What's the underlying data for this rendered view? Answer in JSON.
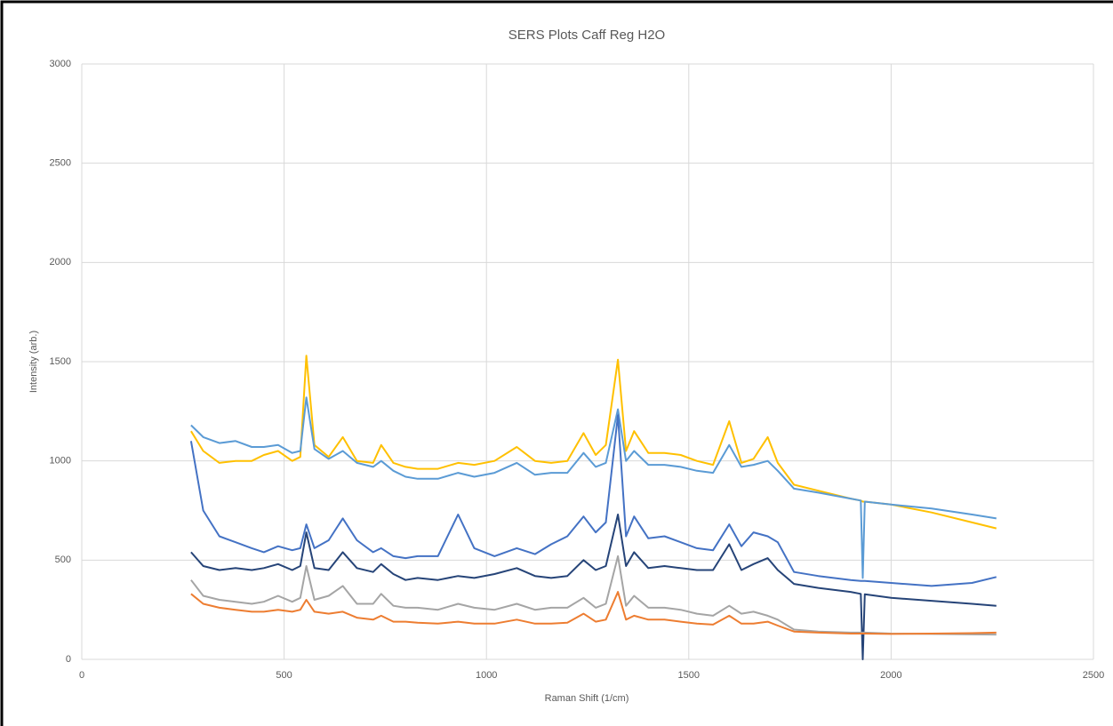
{
  "chart_data": {
    "type": "line",
    "title": "SERS Plots Caff Reg H2O",
    "x_label": "Raman Shift (1/cm)",
    "y_label": "Intensity (arb.)",
    "x": [
      270,
      300,
      340,
      380,
      420,
      450,
      485,
      520,
      540,
      555,
      575,
      610,
      645,
      680,
      720,
      740,
      770,
      800,
      830,
      880,
      930,
      970,
      1020,
      1075,
      1120,
      1160,
      1200,
      1240,
      1270,
      1295,
      1325,
      1345,
      1365,
      1400,
      1440,
      1480,
      1520,
      1560,
      1600,
      1630,
      1660,
      1695,
      1720,
      1760,
      1820,
      1900,
      1925,
      1930,
      1935,
      2000,
      2100,
      2200,
      2260
    ],
    "series": [
      {
        "color": "#ffc000",
        "values": [
          1150,
          1050,
          990,
          1000,
          1000,
          1030,
          1050,
          1000,
          1020,
          1530,
          1080,
          1020,
          1120,
          1000,
          990,
          1080,
          990,
          970,
          960,
          960,
          990,
          980,
          1000,
          1070,
          1000,
          990,
          1000,
          1140,
          1030,
          1080,
          1510,
          1050,
          1150,
          1040,
          1040,
          1030,
          1000,
          980,
          1200,
          990,
          1010,
          1120,
          990,
          880,
          850,
          810,
          800,
          795,
          795,
          780,
          740,
          690,
          660
        ]
      },
      {
        "color": "#5b9bd5",
        "values": [
          1180,
          1120,
          1090,
          1100,
          1070,
          1070,
          1080,
          1040,
          1050,
          1320,
          1060,
          1010,
          1050,
          990,
          970,
          1000,
          950,
          920,
          910,
          910,
          940,
          920,
          940,
          990,
          930,
          940,
          940,
          1040,
          970,
          990,
          1260,
          1000,
          1050,
          980,
          980,
          970,
          950,
          940,
          1080,
          970,
          980,
          1000,
          950,
          860,
          840,
          810,
          800,
          410,
          795,
          780,
          760,
          730,
          710
        ]
      },
      {
        "color": "#4472c4",
        "values": [
          1100,
          750,
          620,
          590,
          560,
          540,
          570,
          550,
          560,
          680,
          560,
          600,
          710,
          600,
          540,
          560,
          520,
          510,
          520,
          520,
          730,
          560,
          520,
          560,
          530,
          580,
          620,
          720,
          640,
          690,
          1230,
          620,
          720,
          610,
          620,
          590,
          560,
          550,
          680,
          570,
          640,
          620,
          590,
          440,
          420,
          400,
          395,
          395,
          395,
          385,
          370,
          385,
          415
        ]
      },
      {
        "color": "#264478",
        "values": [
          540,
          470,
          450,
          460,
          450,
          460,
          480,
          450,
          470,
          640,
          460,
          450,
          540,
          460,
          440,
          480,
          430,
          400,
          410,
          400,
          420,
          410,
          430,
          460,
          420,
          410,
          420,
          500,
          450,
          470,
          730,
          470,
          540,
          460,
          470,
          460,
          450,
          450,
          580,
          450,
          480,
          510,
          450,
          380,
          360,
          340,
          330,
          0,
          328,
          310,
          295,
          280,
          270
        ]
      },
      {
        "color": "#a5a5a5",
        "values": [
          400,
          320,
          300,
          290,
          280,
          290,
          320,
          290,
          310,
          470,
          300,
          320,
          370,
          280,
          280,
          330,
          270,
          260,
          260,
          250,
          280,
          260,
          250,
          280,
          250,
          260,
          260,
          310,
          260,
          280,
          520,
          270,
          320,
          260,
          260,
          250,
          230,
          220,
          270,
          230,
          240,
          220,
          200,
          150,
          140,
          135,
          135,
          135,
          135,
          130,
          128,
          126,
          125
        ]
      },
      {
        "color": "#ed7d31",
        "values": [
          330,
          280,
          260,
          250,
          240,
          240,
          250,
          240,
          250,
          300,
          240,
          230,
          240,
          210,
          200,
          220,
          190,
          190,
          185,
          180,
          190,
          180,
          180,
          200,
          180,
          180,
          185,
          230,
          190,
          200,
          340,
          200,
          220,
          200,
          200,
          190,
          180,
          175,
          220,
          180,
          180,
          190,
          170,
          140,
          135,
          130,
          130,
          130,
          130,
          128,
          130,
          132,
          135
        ]
      }
    ],
    "xlim": [
      0,
      2500
    ],
    "xticks": [
      0,
      500,
      1000,
      1500,
      2000,
      2500
    ],
    "ylim": [
      0,
      3000
    ],
    "yticks": [
      0,
      500,
      1000,
      1500,
      2000,
      2500,
      3000
    ],
    "grid": true
  }
}
